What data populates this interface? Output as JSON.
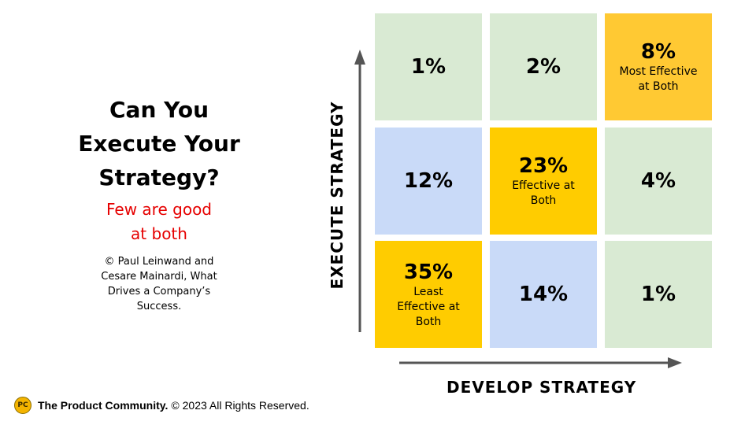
{
  "title_lines": [
    "Can You",
    "Execute Your",
    "Strategy?"
  ],
  "subtitle_lines": [
    "Few are good",
    "at both"
  ],
  "credit_lines": [
    "© Paul Leinwand and",
    "Cesare Mainardi, What",
    "Drives a Company’s",
    "Success."
  ],
  "y_axis_label": "EXECUTE STRATEGY",
  "x_axis_label": "DEVELOP STRATEGY",
  "grid": [
    {
      "pct": "1%",
      "desc": "",
      "color": "#d9ead3"
    },
    {
      "pct": "2%",
      "desc": "",
      "color": "#d9ead3"
    },
    {
      "pct": "8%",
      "desc": "Most Effective at Both",
      "color": "#ffc933"
    },
    {
      "pct": "12%",
      "desc": "",
      "color": "#c9daf8"
    },
    {
      "pct": "23%",
      "desc": "Effective at Both",
      "color": "#ffcc00"
    },
    {
      "pct": "4%",
      "desc": "",
      "color": "#d9ead3"
    },
    {
      "pct": "35%",
      "desc": "Least Effective at Both",
      "color": "#ffcc00"
    },
    {
      "pct": "14%",
      "desc": "",
      "color": "#c9daf8"
    },
    {
      "pct": "1%",
      "desc": "",
      "color": "#d9ead3"
    }
  ],
  "footer": {
    "logo_text": "PC",
    "brand": "The Product Community.",
    "rights": "© 2023 All Rights Reserved."
  }
}
